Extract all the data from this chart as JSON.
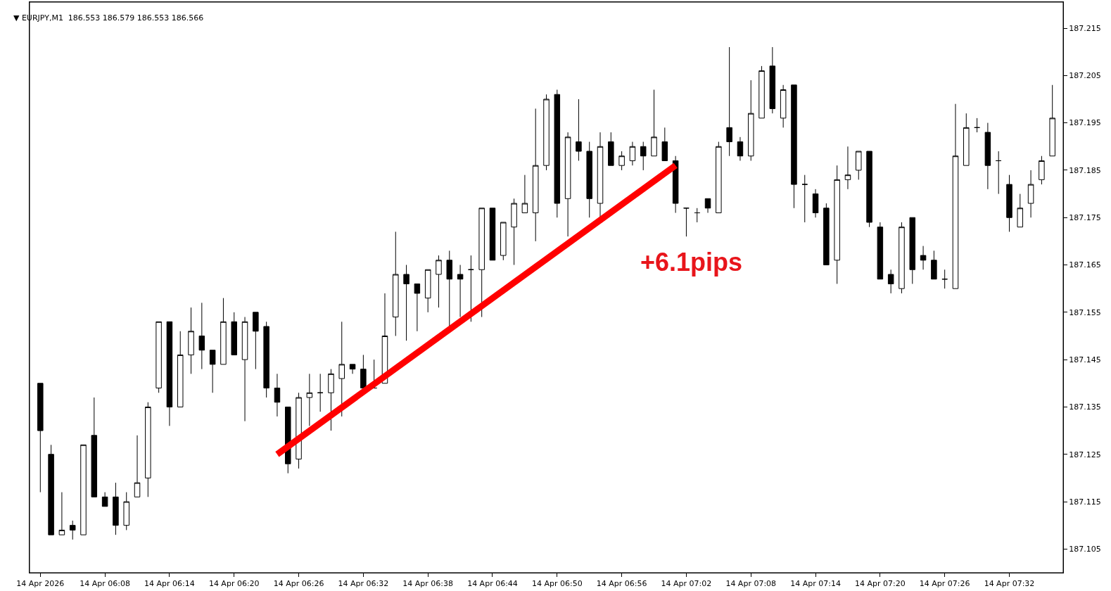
{
  "chart_data": {
    "type": "candlestick",
    "title": "▼ EURJPY,M1  186.553 186.579 186.553 186.566",
    "color": "#000000",
    "x": [
      "2026-04-14T06:02",
      "2026-04-14T06:03",
      "2026-04-14T06:04",
      "2026-04-14T06:05",
      "2026-04-14T06:06",
      "2026-04-14T06:07",
      "2026-04-14T06:08",
      "2026-04-14T06:09",
      "2026-04-14T06:10",
      "2026-04-14T06:11",
      "2026-04-14T06:12",
      "2026-04-14T06:13",
      "2026-04-14T06:14",
      "2026-04-14T06:15",
      "2026-04-14T06:16",
      "2026-04-14T06:17",
      "2026-04-14T06:18",
      "2026-04-14T06:19",
      "2026-04-14T06:20",
      "2026-04-14T06:21",
      "2026-04-14T06:22",
      "2026-04-14T06:23",
      "2026-04-14T06:24",
      "2026-04-14T06:25",
      "2026-04-14T06:26",
      "2026-04-14T06:27",
      "2026-04-14T06:28",
      "2026-04-14T06:29",
      "2026-04-14T06:30",
      "2026-04-14T06:31",
      "2026-04-14T06:32",
      "2026-04-14T06:33",
      "2026-04-14T06:34",
      "2026-04-14T06:35",
      "2026-04-14T06:36",
      "2026-04-14T06:37",
      "2026-04-14T06:38",
      "2026-04-14T06:39",
      "2026-04-14T06:40",
      "2026-04-14T06:41",
      "2026-04-14T06:42",
      "2026-04-14T06:43",
      "2026-04-14T06:44",
      "2026-04-14T06:45",
      "2026-04-14T06:46",
      "2026-04-14T06:47",
      "2026-04-14T06:48",
      "2026-04-14T06:49",
      "2026-04-14T06:50",
      "2026-04-14T06:51",
      "2026-04-14T06:52",
      "2026-04-14T06:53",
      "2026-04-14T06:54",
      "2026-04-14T06:55",
      "2026-04-14T06:56",
      "2026-04-14T06:57",
      "2026-04-14T06:58",
      "2026-04-14T06:59",
      "2026-04-14T07:00",
      "2026-04-14T07:01",
      "2026-04-14T07:02",
      "2026-04-14T07:03",
      "2026-04-14T07:04",
      "2026-04-14T07:05",
      "2026-04-14T07:06",
      "2026-04-14T07:07",
      "2026-04-14T07:08",
      "2026-04-14T07:09",
      "2026-04-14T07:10",
      "2026-04-14T07:11",
      "2026-04-14T07:12",
      "2026-04-14T07:13",
      "2026-04-14T07:14",
      "2026-04-14T07:15",
      "2026-04-14T07:16",
      "2026-04-14T07:17",
      "2026-04-14T07:18",
      "2026-04-14T07:19",
      "2026-04-14T07:20",
      "2026-04-14T07:21",
      "2026-04-14T07:22",
      "2026-04-14T07:23",
      "2026-04-14T07:24",
      "2026-04-14T07:25",
      "2026-04-14T07:26",
      "2026-04-14T07:27",
      "2026-04-14T07:28",
      "2026-04-14T07:29",
      "2026-04-14T07:30",
      "2026-04-14T07:31",
      "2026-04-14T07:32",
      "2026-04-14T07:33",
      "2026-04-14T07:34",
      "2026-04-14T07:35",
      "2026-04-14T07:36"
    ],
    "ohlc": [
      [
        187.14,
        187.14,
        187.117,
        187.13
      ],
      [
        187.125,
        187.127,
        187.108,
        187.108
      ],
      [
        187.108,
        187.117,
        187.108,
        187.109
      ],
      [
        187.11,
        187.111,
        187.107,
        187.109
      ],
      [
        187.108,
        187.127,
        187.108,
        187.127
      ],
      [
        187.129,
        187.137,
        187.116,
        187.116
      ],
      [
        187.116,
        187.117,
        187.114,
        187.114
      ],
      [
        187.116,
        187.119,
        187.108,
        187.11
      ],
      [
        187.11,
        187.117,
        187.109,
        187.115
      ],
      [
        187.116,
        187.129,
        187.116,
        187.119
      ],
      [
        187.12,
        187.136,
        187.116,
        187.135
      ],
      [
        187.139,
        187.153,
        187.138,
        187.153
      ],
      [
        187.153,
        187.153,
        187.131,
        187.135
      ],
      [
        187.135,
        187.151,
        187.135,
        187.146
      ],
      [
        187.146,
        187.156,
        187.142,
        187.151
      ],
      [
        187.15,
        187.157,
        187.143,
        187.147
      ],
      [
        187.147,
        187.147,
        187.138,
        187.144
      ],
      [
        187.144,
        187.158,
        187.144,
        187.153
      ],
      [
        187.153,
        187.155,
        187.146,
        187.146
      ],
      [
        187.145,
        187.154,
        187.132,
        187.153
      ],
      [
        187.155,
        187.155,
        187.143,
        187.151
      ],
      [
        187.152,
        187.153,
        187.137,
        187.139
      ],
      [
        187.139,
        187.142,
        187.133,
        187.136
      ],
      [
        187.135,
        187.135,
        187.121,
        187.123
      ],
      [
        187.124,
        187.138,
        187.122,
        187.137
      ],
      [
        187.137,
        187.142,
        187.131,
        187.138
      ],
      [
        187.138,
        187.142,
        187.134,
        187.138
      ],
      [
        187.138,
        187.143,
        187.13,
        187.142
      ],
      [
        187.141,
        187.153,
        187.133,
        187.144
      ],
      [
        187.144,
        187.144,
        187.142,
        187.143
      ],
      [
        187.143,
        187.146,
        187.139,
        187.139
      ],
      [
        187.139,
        187.145,
        187.139,
        187.139
      ],
      [
        187.14,
        187.159,
        187.14,
        187.15
      ],
      [
        187.154,
        187.172,
        187.15,
        187.163
      ],
      [
        187.163,
        187.165,
        187.149,
        187.161
      ],
      [
        187.161,
        187.161,
        187.151,
        187.159
      ],
      [
        187.158,
        187.164,
        187.155,
        187.164
      ],
      [
        187.163,
        187.167,
        187.156,
        187.166
      ],
      [
        187.166,
        187.168,
        187.152,
        187.162
      ],
      [
        187.163,
        187.165,
        187.154,
        187.162
      ],
      [
        187.164,
        187.167,
        187.153,
        187.164
      ],
      [
        187.164,
        187.177,
        187.154,
        187.177
      ],
      [
        187.177,
        187.177,
        187.166,
        187.166
      ],
      [
        187.167,
        187.174,
        187.166,
        187.174
      ],
      [
        187.173,
        187.179,
        187.165,
        187.178
      ],
      [
        187.176,
        187.184,
        187.176,
        187.178
      ],
      [
        187.176,
        187.198,
        187.17,
        187.186
      ],
      [
        187.186,
        187.201,
        187.185,
        187.2
      ],
      [
        187.201,
        187.202,
        187.175,
        187.178
      ],
      [
        187.179,
        187.193,
        187.171,
        187.192
      ],
      [
        187.191,
        187.2,
        187.187,
        187.189
      ],
      [
        187.189,
        187.191,
        187.175,
        187.179
      ],
      [
        187.178,
        187.193,
        187.175,
        187.19
      ],
      [
        187.191,
        187.193,
        187.186,
        187.186
      ],
      [
        187.186,
        187.189,
        187.185,
        187.188
      ],
      [
        187.187,
        187.191,
        187.186,
        187.19
      ],
      [
        187.19,
        187.191,
        187.185,
        187.188
      ],
      [
        187.188,
        187.202,
        187.188,
        187.192
      ],
      [
        187.191,
        187.194,
        187.187,
        187.187
      ],
      [
        187.187,
        187.188,
        187.176,
        187.178
      ],
      [
        187.177,
        187.177,
        187.171,
        187.177
      ],
      [
        187.176,
        187.177,
        187.174,
        187.176
      ],
      [
        187.179,
        187.179,
        187.176,
        187.177
      ],
      [
        187.176,
        187.191,
        187.176,
        187.19
      ],
      [
        187.194,
        187.211,
        187.188,
        187.191
      ],
      [
        187.191,
        187.192,
        187.187,
        187.188
      ],
      [
        187.188,
        187.204,
        187.187,
        187.197
      ],
      [
        187.196,
        187.207,
        187.196,
        187.206
      ],
      [
        187.207,
        187.211,
        187.197,
        187.198
      ],
      [
        187.196,
        187.203,
        187.194,
        187.202
      ],
      [
        187.203,
        187.203,
        187.177,
        187.182
      ],
      [
        187.182,
        187.184,
        187.174,
        187.182
      ],
      [
        187.18,
        187.181,
        187.175,
        187.176
      ],
      [
        187.177,
        187.178,
        187.165,
        187.165
      ],
      [
        187.166,
        187.186,
        187.161,
        187.183
      ],
      [
        187.183,
        187.19,
        187.181,
        187.184
      ],
      [
        187.185,
        187.189,
        187.183,
        187.189
      ],
      [
        187.189,
        187.189,
        187.173,
        187.174
      ],
      [
        187.173,
        187.174,
        187.162,
        187.162
      ],
      [
        187.163,
        187.164,
        187.159,
        187.161
      ],
      [
        187.16,
        187.174,
        187.159,
        187.173
      ],
      [
        187.175,
        187.175,
        187.161,
        187.164
      ],
      [
        187.167,
        187.169,
        187.164,
        187.166
      ],
      [
        187.166,
        187.168,
        187.162,
        187.162
      ],
      [
        187.162,
        187.164,
        187.16,
        187.162
      ],
      [
        187.16,
        187.199,
        187.16,
        187.188
      ],
      [
        187.186,
        187.197,
        187.186,
        187.194
      ],
      [
        187.194,
        187.196,
        187.193,
        187.194
      ],
      [
        187.193,
        187.195,
        187.181,
        187.186
      ],
      [
        187.187,
        187.189,
        187.18,
        187.187
      ],
      [
        187.182,
        187.184,
        187.172,
        187.175
      ],
      [
        187.173,
        187.18,
        187.173,
        187.177
      ],
      [
        187.178,
        187.185,
        187.175,
        187.182
      ],
      [
        187.183,
        187.188,
        187.182,
        187.187
      ],
      [
        187.188,
        187.203,
        187.188,
        187.196
      ]
    ],
    "series": [
      {
        "type": "line",
        "x": [
          "2026-04-14T06:24",
          "2026-04-14T07:01"
        ],
        "values": [
          187.125,
          187.186
        ],
        "color": "#ff0000"
      }
    ],
    "annotations": [
      "+6.1pips"
    ],
    "xlim": [
      "2026-04-14T06:01",
      "2026-04-14T07:37"
    ],
    "ylim": [
      187.1,
      187.2205
    ],
    "xticks": [
      {
        "value": "2026-04-14T06:02",
        "label": "14 Apr 2026"
      },
      {
        "value": "2026-04-14T06:08",
        "label": "14 Apr 06:08"
      },
      {
        "value": "2026-04-14T06:14",
        "label": "14 Apr 06:14"
      },
      {
        "value": "2026-04-14T06:20",
        "label": "14 Apr 06:20"
      },
      {
        "value": "2026-04-14T06:26",
        "label": "14 Apr 06:26"
      },
      {
        "value": "2026-04-14T06:32",
        "label": "14 Apr 06:32"
      },
      {
        "value": "2026-04-14T06:38",
        "label": "14 Apr 06:38"
      },
      {
        "value": "2026-04-14T06:44",
        "label": "14 Apr 06:44"
      },
      {
        "value": "2026-04-14T06:50",
        "label": "14 Apr 06:50"
      },
      {
        "value": "2026-04-14T06:56",
        "label": "14 Apr 06:56"
      },
      {
        "value": "2026-04-14T07:02",
        "label": "14 Apr 07:02"
      },
      {
        "value": "2026-04-14T07:08",
        "label": "14 Apr 07:08"
      },
      {
        "value": "2026-04-14T07:14",
        "label": "14 Apr 07:14"
      },
      {
        "value": "2026-04-14T07:20",
        "label": "14 Apr 07:20"
      },
      {
        "value": "2026-04-14T07:26",
        "label": "14 Apr 07:26"
      },
      {
        "value": "2026-04-14T07:32",
        "label": "14 Apr 07:32"
      }
    ],
    "yticks": [
      187.105,
      187.115,
      187.125,
      187.135,
      187.145,
      187.155,
      187.165,
      187.175,
      187.185,
      187.195,
      187.205,
      187.215
    ]
  }
}
